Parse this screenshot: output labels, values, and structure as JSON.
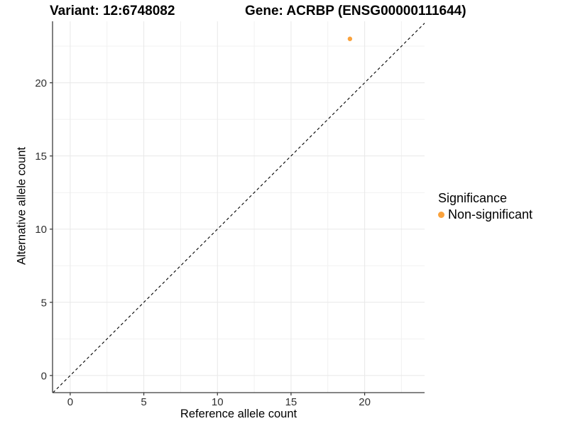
{
  "title": {
    "variant": "Variant: 12:6748082",
    "gene": "Gene: ACRBP (ENSG00000111644)"
  },
  "axes": {
    "x": {
      "label": "Reference allele count"
    },
    "y": {
      "label": "Alternative allele count"
    }
  },
  "legend": {
    "title": "Significance",
    "items": [
      {
        "label": "Non-significant",
        "color": "#FAA23C"
      }
    ]
  },
  "chart_data": {
    "type": "scatter",
    "title": "Variant: 12:6748082   Gene: ACRBP (ENSG00000111644)",
    "xlabel": "Reference allele count",
    "ylabel": "Alternative allele count",
    "xlim": [
      -1.2,
      24.07
    ],
    "ylim": [
      -1.17,
      24.2
    ],
    "x_ticks": [
      0,
      5,
      10,
      15,
      20
    ],
    "y_ticks": [
      0,
      5,
      10,
      15,
      20
    ],
    "x_minor": [
      2.5,
      7.5,
      12.5,
      17.5,
      22.5
    ],
    "y_minor": [
      2.5,
      7.5,
      12.5,
      17.5,
      22.5
    ],
    "grid": "major+minor",
    "legend_position": "right",
    "series": [
      {
        "name": "Non-significant",
        "color": "#FAA23C",
        "points": [
          {
            "x": 19,
            "y": 23
          }
        ]
      }
    ],
    "reference_line": {
      "type": "identity y=x",
      "style": "dashed",
      "color": "#000000"
    }
  },
  "colors": {
    "background": "#FFFFFF",
    "grid_major": "#E8E8E8",
    "grid_minor": "#F1F1F1",
    "axis_line": "#3C3C3C",
    "tick_mark": "#333333",
    "tick_label": "#303030",
    "point": "#FAA23C",
    "reference_line": "#000000"
  }
}
